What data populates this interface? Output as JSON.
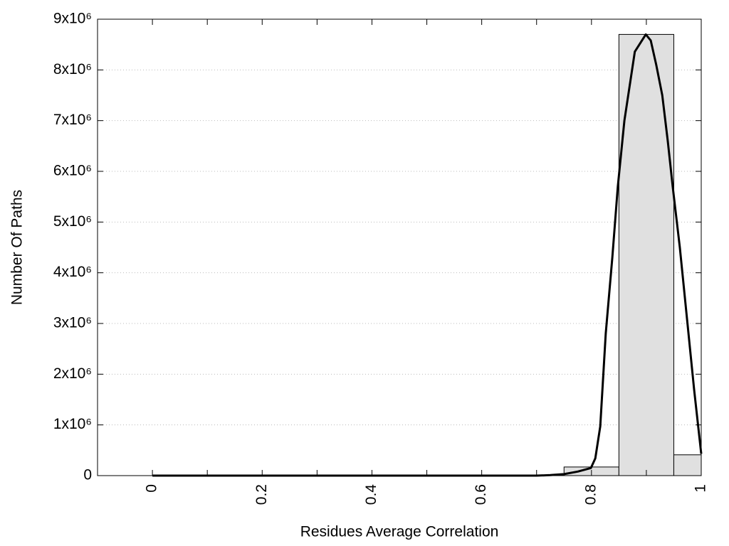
{
  "chart_data": {
    "type": "histogram",
    "xlabel": "Residues Average Correlation",
    "ylabel": "Number Of Paths",
    "bins": [
      0.75,
      0.85,
      0.95,
      1.0
    ],
    "counts": [
      170000,
      8700000,
      410000
    ],
    "bar_color": "#e0e0e0",
    "curve": {
      "color": "#000000",
      "x": [
        0,
        0.1,
        0.2,
        0.3,
        0.4,
        0.5,
        0.6,
        0.7,
        0.725,
        0.75,
        0.775,
        0.799,
        0.807,
        0.816,
        0.826,
        0.838,
        0.848,
        0.86,
        0.879,
        0.899,
        0.908,
        0.918,
        0.929,
        0.939,
        0.948,
        0.961,
        0.974,
        0.987,
        1.0
      ],
      "values": [
        0,
        0,
        0,
        0,
        0,
        0,
        0,
        0,
        10000,
        30000,
        80000,
        150000,
        340000,
        970000,
        2800000,
        4300000,
        5700000,
        7000000,
        8360000,
        8700000,
        8580000,
        8100000,
        7500000,
        6600000,
        5700000,
        4500000,
        3100000,
        1700000,
        430000
      ]
    },
    "xlim": [
      -0.1,
      1
    ],
    "ylim": [
      0,
      9000000
    ],
    "xticks": [
      0,
      0.2,
      0.4,
      0.6,
      0.8,
      1
    ],
    "xminor_ticks": [
      0.1,
      0.3,
      0.5,
      0.7,
      0.9
    ],
    "yticks": [
      0,
      {
        "value": 1000000,
        "label": "1x10⁶"
      },
      {
        "value": 2000000,
        "label": "2x10⁶"
      },
      {
        "value": 3000000,
        "label": "3x10⁶"
      },
      {
        "value": 4000000,
        "label": "4x10⁶"
      },
      {
        "value": 5000000,
        "label": "5x10⁶"
      },
      {
        "value": 6000000,
        "label": "6x10⁶"
      },
      {
        "value": 7000000,
        "label": "7x10⁶"
      },
      {
        "value": 8000000,
        "label": "8x10⁶"
      },
      {
        "value": 9000000,
        "label": "9x10⁶"
      }
    ],
    "grid": true
  }
}
